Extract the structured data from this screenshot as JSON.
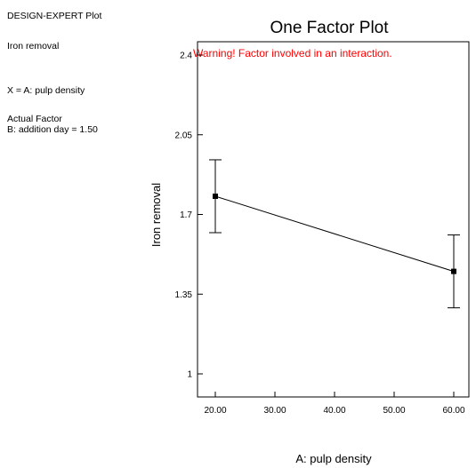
{
  "sidebar": {
    "plot_type": "DESIGN-EXPERT Plot",
    "response": "Iron removal",
    "x_factor": "X = A: pulp density",
    "actual_factor_heading": "Actual Factor",
    "actual_factor_value": "B: addition day = 1.50"
  },
  "chart_data": {
    "type": "line",
    "title": "One Factor Plot",
    "warning": "Warning! Factor involved in an interaction.",
    "xlabel": "A: pulp density",
    "ylabel": "Iron removal",
    "xlim": [
      20,
      60
    ],
    "ylim": [
      1,
      2.4
    ],
    "xticks": [
      {
        "value": 20,
        "label": "20.00"
      },
      {
        "value": 30,
        "label": "30.00"
      },
      {
        "value": 40,
        "label": "40.00"
      },
      {
        "value": 50,
        "label": "50.00"
      },
      {
        "value": 60,
        "label": "60.00"
      }
    ],
    "yticks": [
      {
        "value": 1,
        "label": "1"
      },
      {
        "value": 1.35,
        "label": "1.35"
      },
      {
        "value": 1.7,
        "label": "1.7"
      },
      {
        "value": 2.05,
        "label": "2.05"
      },
      {
        "value": 2.4,
        "label": "2.4"
      }
    ],
    "grid": false,
    "points": [
      {
        "x": 20,
        "y": 1.78,
        "lower": 1.62,
        "upper": 1.94
      },
      {
        "x": 60,
        "y": 1.45,
        "lower": 1.29,
        "upper": 1.61
      }
    ],
    "colors": {
      "line": "#000000",
      "warning": "#ff0000",
      "frame": "#000000"
    }
  }
}
